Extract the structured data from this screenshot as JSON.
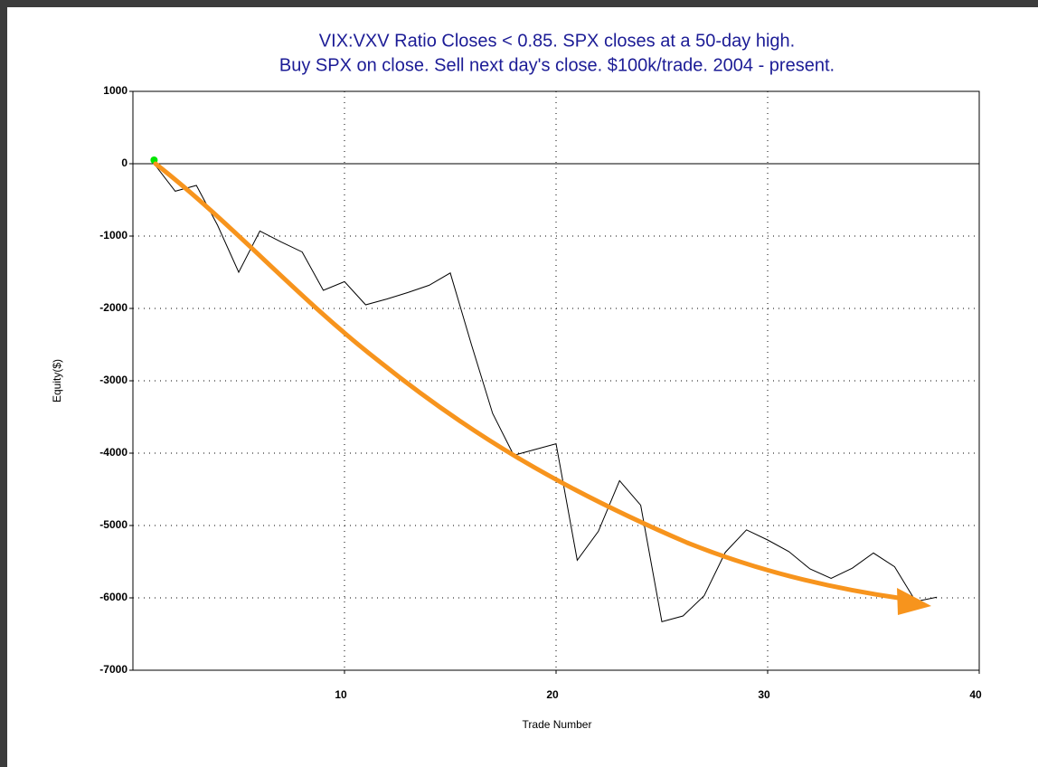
{
  "chart_data": {
    "type": "line",
    "title": [
      "VIX:VXV Ratio Closes < 0.85. SPX closes at a 50-day high.",
      "Buy SPX on close. Sell next day's close. $100k/trade. 2004 - present."
    ],
    "x_label": "Trade Number",
    "y_label": "Equity($)",
    "x": [
      1,
      2,
      3,
      4,
      5,
      6,
      7,
      8,
      9,
      10,
      11,
      12,
      13,
      14,
      15,
      16,
      17,
      18,
      19,
      20,
      21,
      22,
      23,
      24,
      25,
      26,
      27,
      28,
      29,
      30,
      31,
      32,
      33,
      34,
      35,
      36,
      37,
      38
    ],
    "series": [
      {
        "color": "#000000",
        "values": [
          0,
          -380,
          -300,
          -850,
          -1500,
          -930,
          -1080,
          -1220,
          -1750,
          -1630,
          -1950,
          -1870,
          -1780,
          -1680,
          -1510,
          -2500,
          -3450,
          -4030,
          -3950,
          -3870,
          -5480,
          -5080,
          -4380,
          -4720,
          -6330,
          -6250,
          -5970,
          -5370,
          -5060,
          -5200,
          -5360,
          -5600,
          -5730,
          -5590,
          -5380,
          -5570,
          -6050,
          -5990
        ]
      }
    ],
    "start_marker_color": "#00e600",
    "xlim": [
      0,
      40
    ],
    "xticks": [
      10,
      20,
      30,
      40
    ],
    "ylim": [
      -7000,
      1000
    ],
    "yticks": [
      -7000,
      -6000,
      -5000,
      -4000,
      -3000,
      -2000,
      -1000,
      0,
      1000
    ],
    "grid": true
  }
}
